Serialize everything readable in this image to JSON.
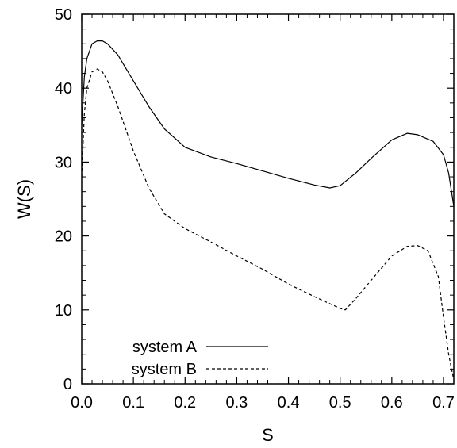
{
  "chart_data": {
    "type": "line",
    "title": "",
    "xlabel": "S",
    "ylabel": "W(S)",
    "xlim": [
      0.0,
      0.72
    ],
    "ylim": [
      0,
      50
    ],
    "x_ticks": [
      0.0,
      0.1,
      0.2,
      0.3,
      0.4,
      0.5,
      0.6,
      0.7
    ],
    "x_tick_labels": [
      "0.0",
      "0.1",
      "0.2",
      "0.3",
      "0.4",
      "0.5",
      "0.6",
      "0.7"
    ],
    "y_ticks": [
      0,
      10,
      20,
      30,
      40,
      50
    ],
    "y_tick_labels": [
      "0",
      "10",
      "20",
      "30",
      "40",
      "50"
    ],
    "grid": false,
    "legend_position": "bottom-left",
    "series": [
      {
        "name": "system A",
        "line_style": "solid",
        "color": "#000000",
        "x": [
          0.0,
          0.005,
          0.01,
          0.02,
          0.03,
          0.04,
          0.05,
          0.07,
          0.1,
          0.13,
          0.16,
          0.2,
          0.25,
          0.3,
          0.35,
          0.4,
          0.45,
          0.48,
          0.5,
          0.53,
          0.56,
          0.6,
          0.63,
          0.65,
          0.68,
          0.7,
          0.71,
          0.72
        ],
        "y": [
          35.0,
          41.5,
          44.0,
          46.0,
          46.4,
          46.4,
          46.0,
          44.5,
          41.0,
          37.5,
          34.5,
          32.0,
          30.7,
          29.8,
          28.8,
          27.8,
          26.9,
          26.5,
          26.8,
          28.5,
          30.5,
          33.0,
          33.9,
          33.7,
          32.8,
          31.0,
          28.5,
          24.0
        ]
      },
      {
        "name": "system B",
        "line_style": "dashed",
        "color": "#000000",
        "x": [
          0.0,
          0.005,
          0.01,
          0.02,
          0.03,
          0.04,
          0.05,
          0.07,
          0.1,
          0.13,
          0.16,
          0.2,
          0.25,
          0.3,
          0.35,
          0.4,
          0.45,
          0.5,
          0.51,
          0.53,
          0.56,
          0.6,
          0.63,
          0.65,
          0.67,
          0.69,
          0.7,
          0.71,
          0.72
        ],
        "y": [
          28.0,
          36.5,
          40.0,
          42.2,
          42.6,
          42.2,
          41.0,
          37.5,
          31.5,
          26.5,
          23.0,
          21.0,
          19.2,
          17.3,
          15.5,
          13.5,
          11.8,
          10.2,
          10.0,
          11.5,
          14.0,
          17.3,
          18.6,
          18.7,
          18.0,
          14.5,
          9.0,
          4.0,
          0.5
        ]
      }
    ]
  }
}
